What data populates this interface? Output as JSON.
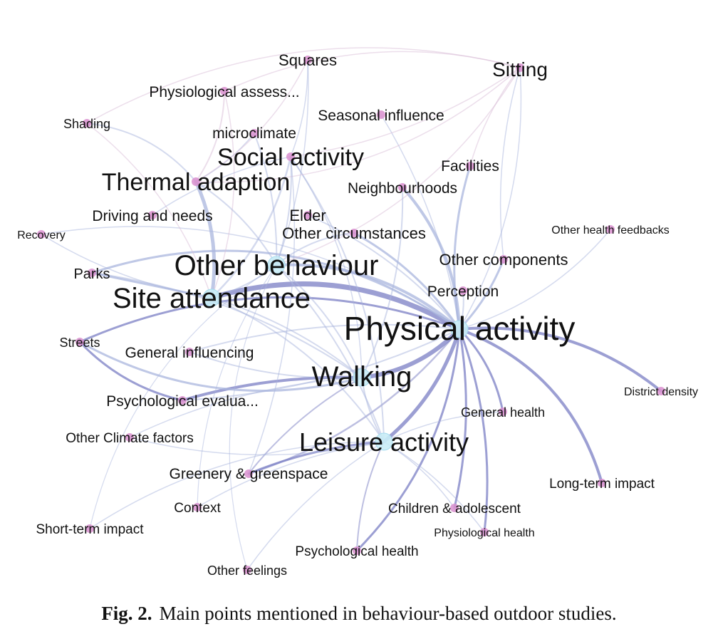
{
  "colors": {
    "edge_strong": "#7b7fc4",
    "edge_light": "#aab6dd",
    "edge_pink": "#d9bdd8",
    "node_small": "#d98fcf",
    "node_hub": "#c9ecf6",
    "node_hub_edge": "#a6dcef"
  },
  "nodes": [
    {
      "id": "squares",
      "label": "Squares"
    },
    {
      "id": "sitting",
      "label": "Sitting"
    },
    {
      "id": "physiological_assess",
      "label": "Physiological assess..."
    },
    {
      "id": "seasonal_influence",
      "label": "Seasonal influence"
    },
    {
      "id": "shading",
      "label": "Shading"
    },
    {
      "id": "microclimate",
      "label": "microclimate"
    },
    {
      "id": "social_activity",
      "label": "Social activity"
    },
    {
      "id": "facilities",
      "label": "Facilities"
    },
    {
      "id": "thermal_adaption",
      "label": "Thermal adaption"
    },
    {
      "id": "neighbourhoods",
      "label": "Neighbourhoods"
    },
    {
      "id": "driving_needs",
      "label": "Driving and needs"
    },
    {
      "id": "elder",
      "label": "Elder"
    },
    {
      "id": "recovery",
      "label": "Recovery"
    },
    {
      "id": "other_circumstances",
      "label": "Other circumstances"
    },
    {
      "id": "other_health_feedbacks",
      "label": "Other health feedbacks"
    },
    {
      "id": "other_behaviour",
      "label": "Other behaviour"
    },
    {
      "id": "other_components",
      "label": "Other components"
    },
    {
      "id": "parks",
      "label": "Parks"
    },
    {
      "id": "site_attendance",
      "label": "Site attendance"
    },
    {
      "id": "perception",
      "label": "Perception"
    },
    {
      "id": "physical_activity",
      "label": "Physical activity"
    },
    {
      "id": "streets",
      "label": "Streets"
    },
    {
      "id": "general_influencing",
      "label": "General influencing"
    },
    {
      "id": "walking",
      "label": "Walking"
    },
    {
      "id": "psychological_evalua",
      "label": "Psychological evalua..."
    },
    {
      "id": "district_density",
      "label": "District density"
    },
    {
      "id": "general_health",
      "label": "General health"
    },
    {
      "id": "other_climate_factors",
      "label": "Other Climate factors"
    },
    {
      "id": "leisure_activity",
      "label": "Leisure activity"
    },
    {
      "id": "greenery_greenspace",
      "label": "Greenery & greenspace"
    },
    {
      "id": "long_term_impact",
      "label": "Long-term impact"
    },
    {
      "id": "context",
      "label": "Context"
    },
    {
      "id": "children_adolescent",
      "label": "Children & adolescent"
    },
    {
      "id": "short_term_impact",
      "label": "Short-term impact"
    },
    {
      "id": "physiological_health",
      "label": "Physiological health"
    },
    {
      "id": "psychological_health",
      "label": "Psychological health"
    },
    {
      "id": "other_feelings",
      "label": "Other feelings"
    }
  ],
  "caption": {
    "label": "Fig. 2.",
    "text": "Main points mentioned in behaviour-based outdoor studies."
  }
}
